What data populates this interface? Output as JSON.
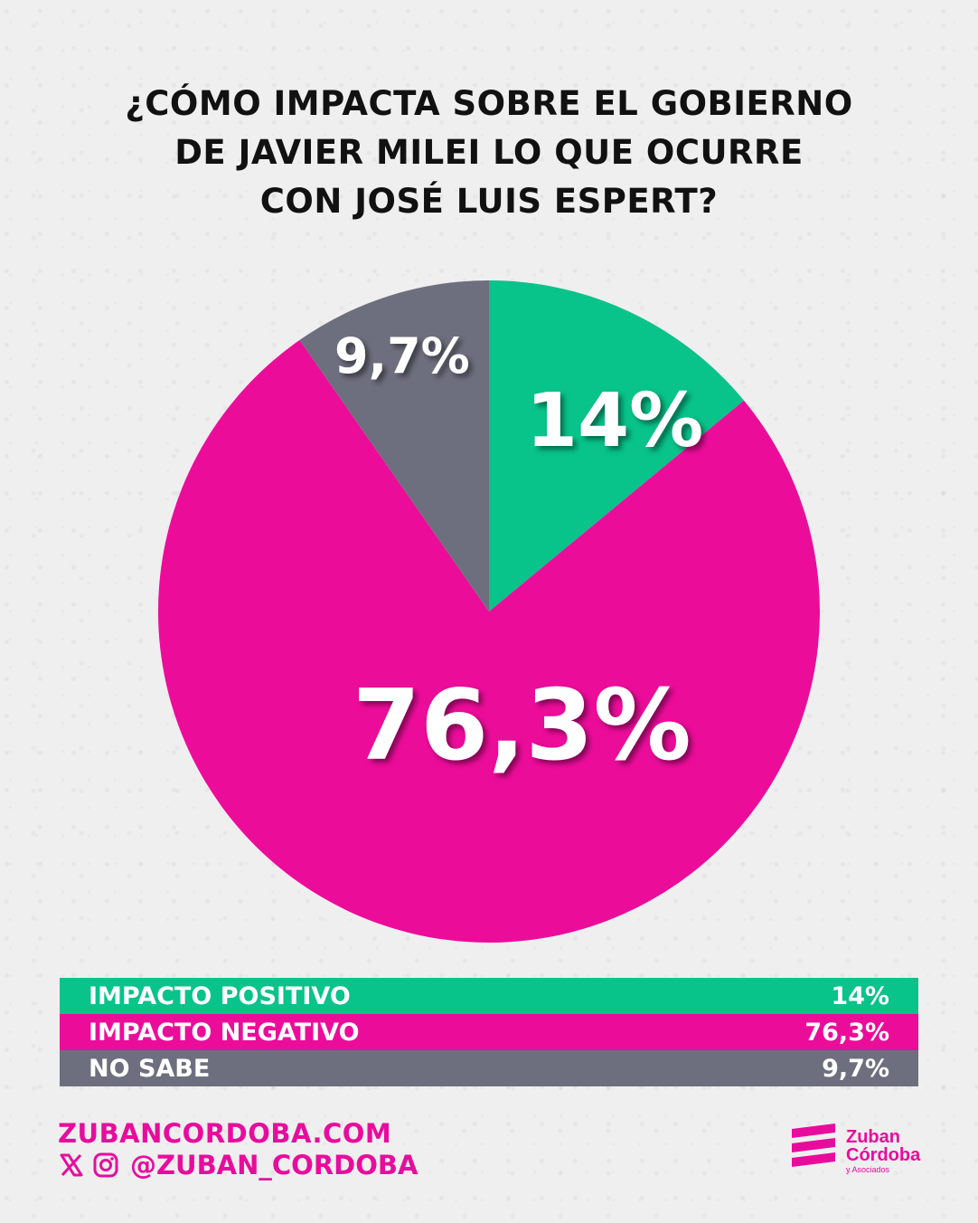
{
  "title_lines": [
    "¿CÓMO IMPACTA SOBRE EL GOBIERNO",
    "DE JAVIER MILEI LO QUE OCURRE",
    "CON JOSÉ LUIS ESPERT?"
  ],
  "chart_data": {
    "type": "pie",
    "title": "¿CÓMO IMPACTA SOBRE EL GOBIERNO DE JAVIER MILEI LO QUE OCURRE CON JOSÉ LUIS ESPERT?",
    "slices": [
      {
        "name": "IMPACTO POSITIVO",
        "value": 14,
        "label": "14%",
        "color": "#08c38a"
      },
      {
        "name": "IMPACTO NEGATIVO",
        "value": 76.3,
        "label": "76,3%",
        "color": "#ec0c9a"
      },
      {
        "name": "NO SABE",
        "value": 9.7,
        "label": "9,7%",
        "color": "#6e6f7e"
      }
    ],
    "start_angle": "12 o'clock, clockwise",
    "legend": "bottom"
  },
  "legend": [
    {
      "name": "IMPACTO POSITIVO",
      "value": "14%",
      "color": "#08c38a"
    },
    {
      "name": "IMPACTO NEGATIVO",
      "value": "76,3%",
      "color": "#ec0c9a"
    },
    {
      "name": "NO SABE",
      "value": "9,7%",
      "color": "#6e6f7e"
    }
  ],
  "footer": {
    "website": "ZUBANCORDOBA.COM",
    "handle": "@ZUBAN_CORDOBA",
    "icons": [
      "x-icon",
      "instagram-icon"
    ]
  },
  "brand": {
    "line1": "Zuban",
    "line2": "Córdoba",
    "line3": "y Asociados",
    "icon": "zuban-logo-icon"
  }
}
